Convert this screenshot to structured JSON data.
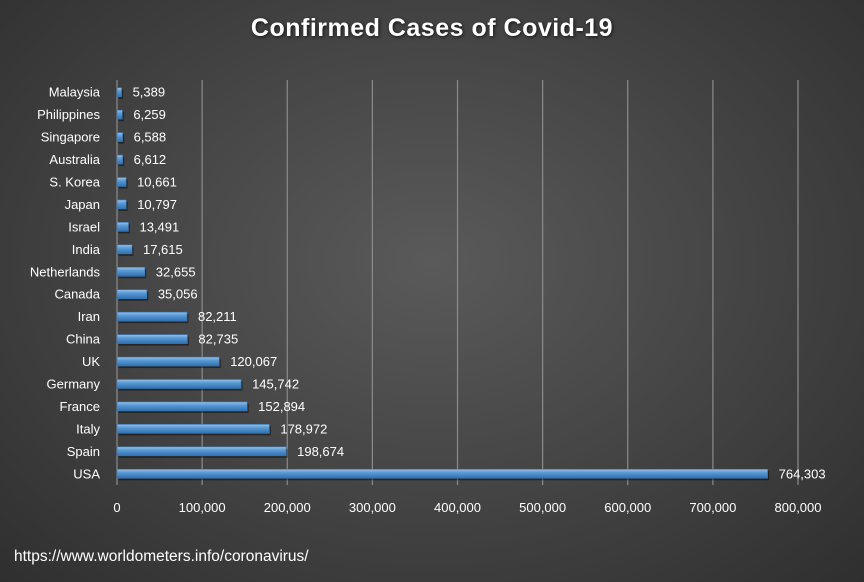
{
  "chart_data": {
    "type": "bar",
    "orientation": "horizontal",
    "title": "Confirmed Cases of Covid-19",
    "categories": [
      "USA",
      "Spain",
      "Italy",
      "France",
      "Germany",
      "UK",
      "China",
      "Iran",
      "Canada",
      "Netherlands",
      "India",
      "Israel",
      "Japan",
      "S. Korea",
      "Australia",
      "Singapore",
      "Philippines",
      "Malaysia"
    ],
    "values": [
      764303,
      198674,
      178972,
      152894,
      145742,
      120067,
      82735,
      82211,
      35056,
      32655,
      17615,
      13491,
      10797,
      10661,
      6612,
      6588,
      6259,
      5389
    ],
    "data_labels": [
      "764,303",
      "198,674",
      "178,972",
      "152,894",
      "145,742",
      "120,067",
      "82,735",
      "82,211",
      "35,056",
      "32,655",
      "17,615",
      "13,491",
      "10,797",
      "10,661",
      "6,612",
      "6,588",
      "6,259",
      "5,389"
    ],
    "xlim": [
      0,
      800000
    ],
    "xticks": [
      0,
      100000,
      200000,
      300000,
      400000,
      500000,
      600000,
      700000,
      800000
    ],
    "xtick_labels": [
      "0",
      "100,000",
      "200,000",
      "300,000",
      "400,000",
      "500,000",
      "600,000",
      "700,000",
      "800,000"
    ],
    "xlabel": "",
    "ylabel": "",
    "grid": "vertical",
    "legend": "none",
    "bar_color": "#5b9bd5"
  },
  "footer": {
    "source": "https://www.worldometers.info/coronavirus/"
  }
}
